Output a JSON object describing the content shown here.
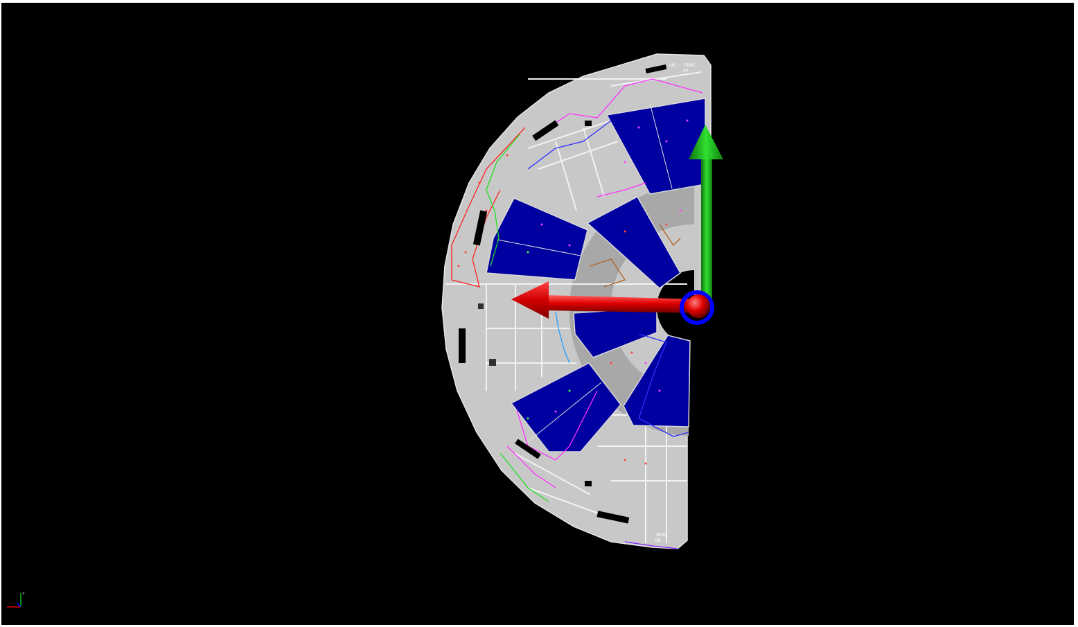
{
  "viewport": {
    "background": "#000000",
    "panel_fill": "#c8c8c8",
    "panel_seam": "#f2f2f2",
    "sector_fill": "#0000a0",
    "axis_x_color": "#e00000",
    "axis_y_color": "#10c010",
    "pivot_ring_color": "#0000ff"
  },
  "model": {
    "label_top_a": "SH1",
    "label_top_b": "TRORC",
    "label_top_c": "UP",
    "label_bottom_a": "TRORC",
    "label_bottom_b": "DN"
  },
  "triad": {
    "axis_x": "x-axis",
    "axis_y": "y-axis"
  },
  "gizmo": {
    "icon": "axis-triad-icon"
  }
}
